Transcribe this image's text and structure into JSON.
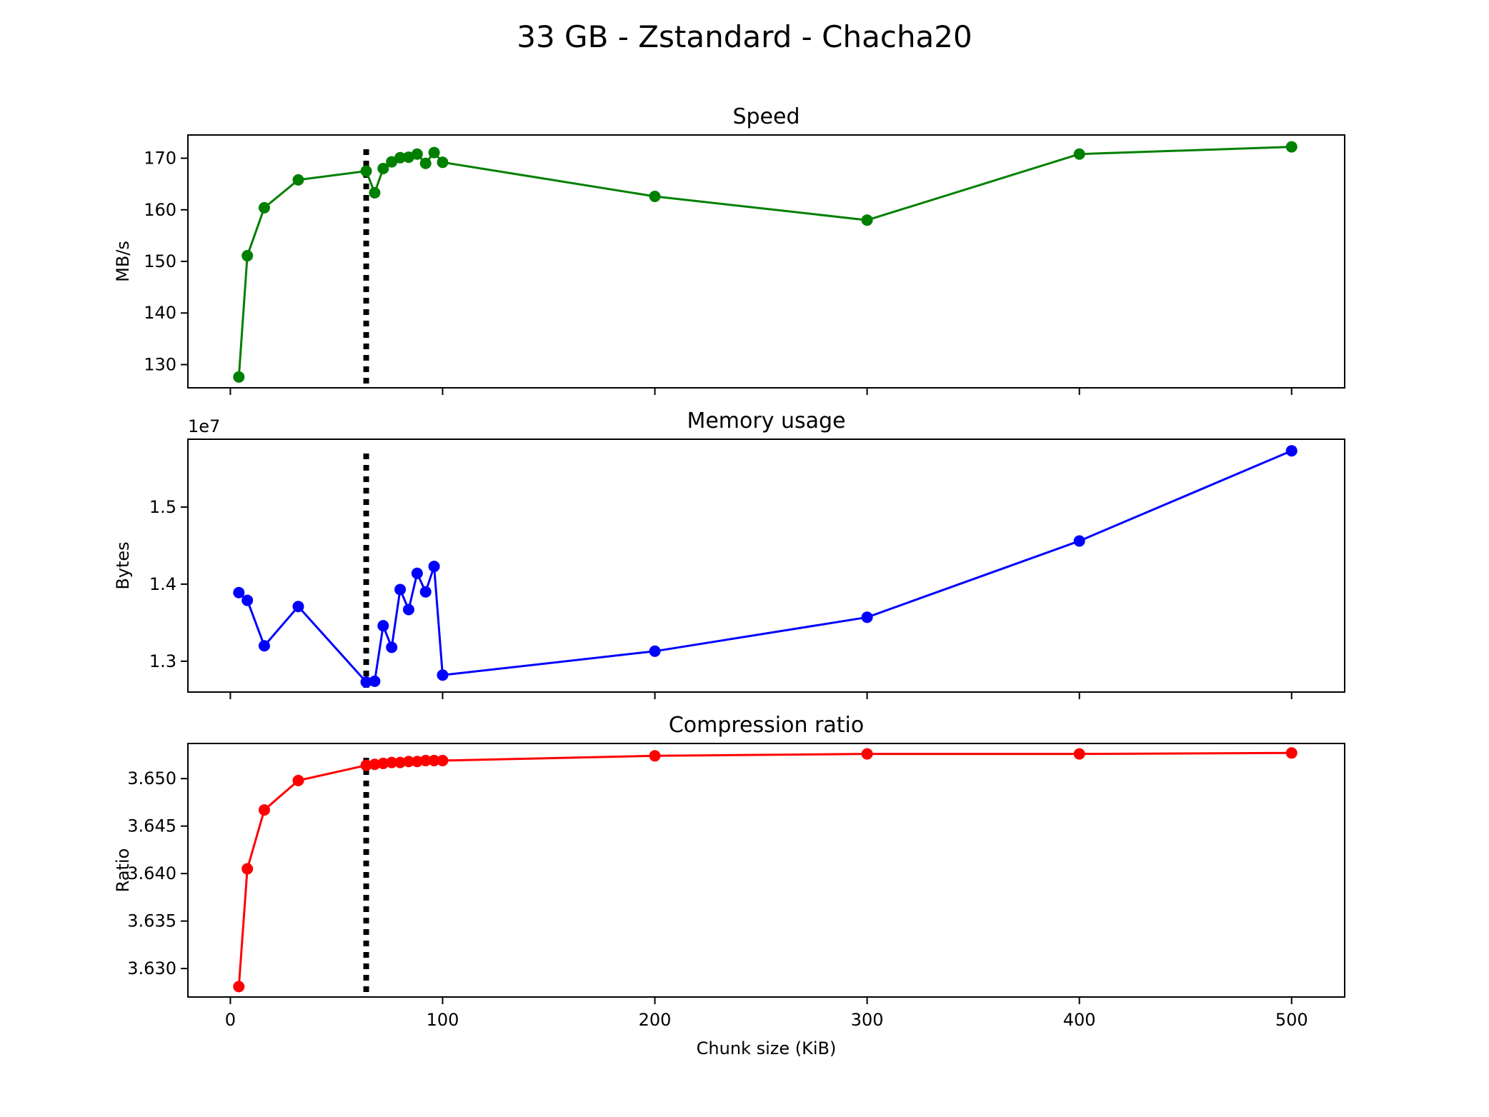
{
  "figure": {
    "title": "33 GB - Zstandard - Chacha20"
  },
  "chart_data": [
    {
      "type": "line",
      "title": "Speed",
      "xlabel": "",
      "ylabel": "MB/s",
      "color": "#008000",
      "xlim": [
        -20,
        525
      ],
      "ylim": [
        125.5,
        174.5
      ],
      "x_ticks": [
        0,
        100,
        200,
        300,
        400,
        500
      ],
      "x_tick_labels_visible": false,
      "y_ticks": [
        130,
        140,
        150,
        160,
        170
      ],
      "y_tick_labels": [
        "130",
        "140",
        "150",
        "160",
        "170"
      ],
      "offset_label": "",
      "vline": {
        "x": 64,
        "style": "dotted",
        "color": "#000000"
      },
      "x": [
        4,
        8,
        16,
        32,
        64,
        68,
        72,
        76,
        80,
        84,
        88,
        92,
        96,
        100,
        200,
        300,
        400,
        500
      ],
      "values": [
        127.6,
        151.1,
        160.4,
        165.8,
        167.5,
        163.3,
        168.0,
        169.3,
        170.1,
        170.2,
        170.8,
        169.0,
        171.1,
        169.2,
        162.6,
        158.0,
        170.8,
        172.2
      ]
    },
    {
      "type": "line",
      "title": "Memory usage",
      "xlabel": "",
      "ylabel": "Bytes",
      "color": "#0000ff",
      "xlim": [
        -20,
        525
      ],
      "ylim": [
        12600000,
        15880000
      ],
      "x_ticks": [
        0,
        100,
        200,
        300,
        400,
        500
      ],
      "x_tick_labels_visible": false,
      "y_ticks": [
        13000000,
        14000000,
        15000000
      ],
      "y_tick_labels": [
        "1.3",
        "1.4",
        "1.5"
      ],
      "offset_label": "1e7",
      "vline": {
        "x": 64,
        "style": "dotted",
        "color": "#000000"
      },
      "x": [
        4,
        8,
        16,
        32,
        64,
        68,
        72,
        76,
        80,
        84,
        88,
        92,
        96,
        100,
        200,
        300,
        400,
        500
      ],
      "values": [
        13890000,
        13790000,
        13200000,
        13710000,
        12730000,
        12740000,
        13460000,
        13180000,
        13930000,
        13670000,
        14140000,
        13900000,
        14230000,
        12820000,
        13130000,
        13570000,
        14560000,
        15730000
      ]
    },
    {
      "type": "line",
      "title": "Compression ratio",
      "xlabel": "Chunk size (KiB)",
      "ylabel": "Ratio",
      "color": "#ff0000",
      "xlim": [
        -20,
        525
      ],
      "ylim": [
        3.627,
        3.6537
      ],
      "x_ticks": [
        0,
        100,
        200,
        300,
        400,
        500
      ],
      "x_tick_labels": [
        "0",
        "100",
        "200",
        "300",
        "400",
        "500"
      ],
      "x_tick_labels_visible": true,
      "y_ticks": [
        3.63,
        3.635,
        3.64,
        3.645,
        3.65
      ],
      "y_tick_labels": [
        "3.630",
        "3.635",
        "3.640",
        "3.645",
        "3.650"
      ],
      "offset_label": "",
      "vline": {
        "x": 64,
        "style": "dotted",
        "color": "#000000"
      },
      "x": [
        4,
        8,
        16,
        32,
        64,
        68,
        72,
        76,
        80,
        84,
        88,
        92,
        96,
        100,
        200,
        300,
        400,
        500
      ],
      "values": [
        3.6281,
        3.6405,
        3.6467,
        3.6498,
        3.6514,
        3.6515,
        3.6516,
        3.6517,
        3.6517,
        3.6518,
        3.6518,
        3.6519,
        3.6519,
        3.6519,
        3.6524,
        3.6526,
        3.6526,
        3.6527
      ]
    }
  ]
}
